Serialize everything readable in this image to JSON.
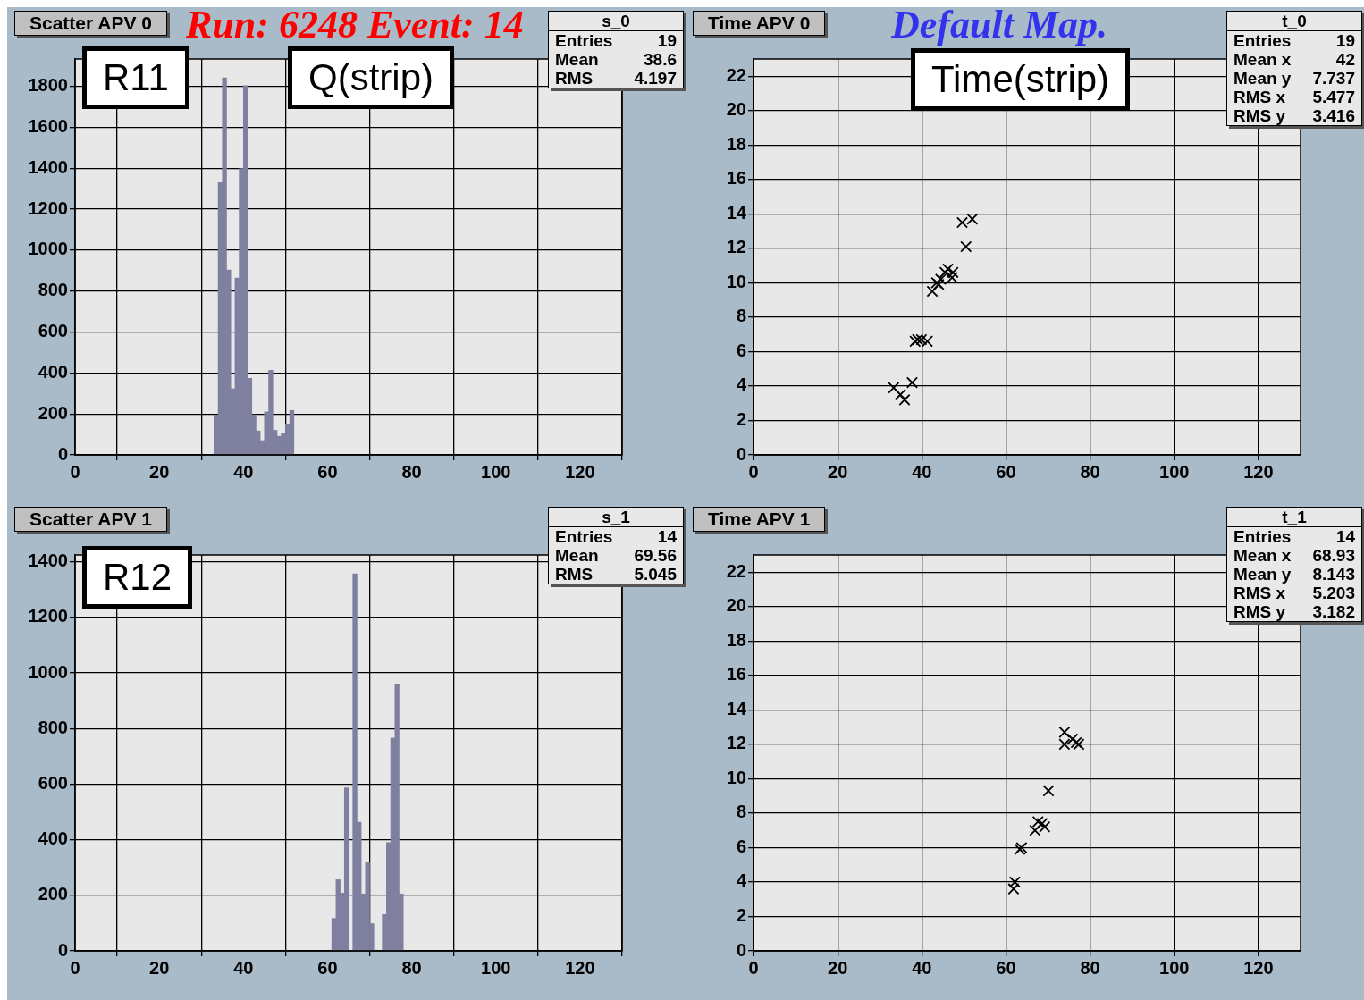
{
  "chart_data": [
    {
      "type": "histogram",
      "title": "Scatter APV 0",
      "subtitle": "Run: 6248  Event: 14",
      "annotations": [
        "R11",
        "Q(strip)",
        "s_0",
        "Entries",
        "19",
        "Mean",
        "38.6",
        "RMS",
        "4.197"
      ],
      "bins": [
        33,
        34,
        35,
        36,
        37,
        38,
        39,
        40,
        41,
        42,
        43,
        44,
        45,
        46,
        47,
        48,
        49,
        50,
        51,
        52
      ],
      "values": [
        195,
        1330,
        1842,
        903,
        323,
        864,
        1399,
        1804,
        374,
        196,
        117,
        70,
        210,
        413,
        120,
        91,
        106,
        149,
        217
      ],
      "color": "#7f7f9f",
      "xlim": [
        0,
        130
      ],
      "ylim": [
        0,
        1934
      ],
      "xticks": [
        0,
        20,
        40,
        60,
        80,
        100,
        120
      ],
      "yticks": [
        0,
        200,
        400,
        600,
        800,
        1000,
        1200,
        1400,
        1600,
        1800
      ],
      "grid": true
    },
    {
      "type": "scatter",
      "title": "Time APV 0",
      "subtitle": "Default Map.",
      "annotations": [
        "Time(strip)",
        "t_0",
        "Entries",
        "19",
        "Mean x",
        "42",
        "Mean y",
        "7.737",
        "RMS x",
        "5.477",
        "RMS y",
        "3.416"
      ],
      "x": [
        33.3,
        34.9,
        35.9,
        37.7,
        38.4,
        39.0,
        39.9,
        41.3,
        42.5,
        43.5,
        44.0,
        44.5,
        45.5,
        46.2,
        47.2,
        47.4,
        49.6,
        50.5,
        52.0
      ],
      "values": [
        3.9,
        3.5,
        3.2,
        4.2,
        6.6,
        6.7,
        6.7,
        6.6,
        9.5,
        10.0,
        9.9,
        10.2,
        10.6,
        10.8,
        10.3,
        10.6,
        13.5,
        12.1,
        13.7
      ],
      "color": "#000000",
      "marker": "cross",
      "xlim": [
        0,
        130
      ],
      "ylim": [
        0,
        23
      ],
      "xticks": [
        0,
        20,
        40,
        60,
        80,
        100,
        120
      ],
      "yticks": [
        0,
        2,
        4,
        6,
        8,
        10,
        12,
        14,
        16,
        18,
        20,
        22
      ],
      "grid": true
    },
    {
      "type": "histogram",
      "title": "Scatter APV 1",
      "annotations": [
        "R12",
        "s_1",
        "Entries",
        "14",
        "Mean",
        "69.56",
        "RMS",
        "5.045"
      ],
      "bins": [
        61,
        62,
        63,
        64,
        65,
        66,
        67,
        68,
        69,
        70,
        71,
        72,
        73,
        74,
        75,
        76,
        77,
        78
      ],
      "values": [
        117,
        256,
        208,
        587,
        0,
        1357,
        463,
        205,
        317,
        98,
        0,
        0,
        131,
        390,
        766,
        961,
        205
      ],
      "color": "#7f7f9f",
      "xlim": [
        0,
        130
      ],
      "ylim": [
        0,
        1425
      ],
      "xticks": [
        0,
        20,
        40,
        60,
        80,
        100,
        120
      ],
      "yticks": [
        0,
        200,
        400,
        600,
        800,
        1000,
        1200,
        1400
      ],
      "grid": true
    },
    {
      "type": "scatter",
      "title": "Time APV 1",
      "annotations": [
        "t_1",
        "Entries",
        "14",
        "Mean x",
        "68.93",
        "Mean y",
        "8.143",
        "RMS x",
        "5.203",
        "RMS y",
        "3.182"
      ],
      "x": [
        61.8,
        62.1,
        63.3,
        63.7,
        66.9,
        67.6,
        68.6,
        69.2,
        70.1,
        73.9,
        73.9,
        75.8,
        76.7,
        77.3
      ],
      "values": [
        3.6,
        4.0,
        5.9,
        6.0,
        7.0,
        7.5,
        7.4,
        7.2,
        9.3,
        12.7,
        12.0,
        12.3,
        12.1,
        12.0
      ],
      "color": "#000000",
      "marker": "cross",
      "xlim": [
        0,
        130
      ],
      "ylim": [
        0,
        23
      ],
      "xticks": [
        0,
        20,
        40,
        60,
        80,
        100,
        120
      ],
      "yticks": [
        0,
        2,
        4,
        6,
        8,
        10,
        12,
        14,
        16,
        18,
        20,
        22
      ],
      "grid": true
    }
  ]
}
